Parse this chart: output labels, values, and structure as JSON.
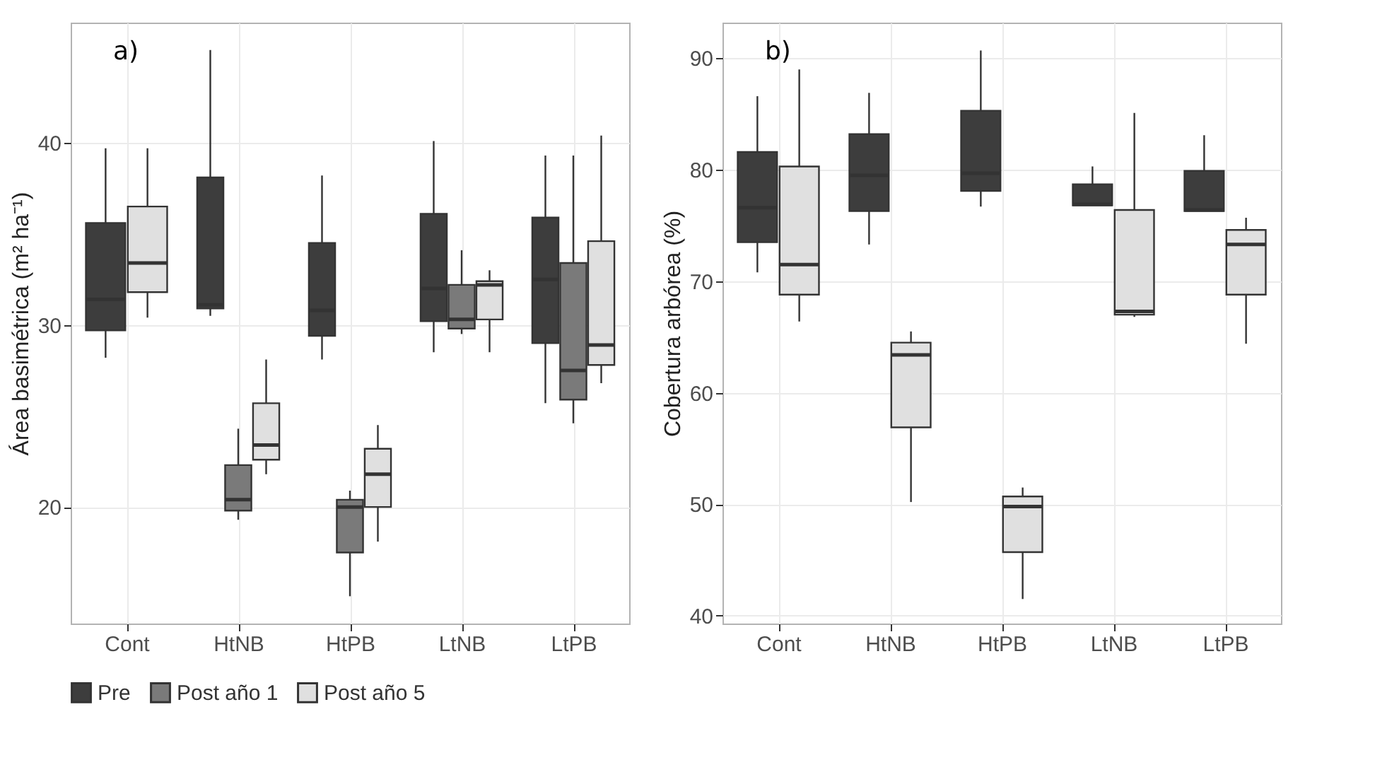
{
  "chart_data": [
    {
      "type": "box",
      "ylabel": "Área basimétrica (m² ha⁻¹)",
      "annotations": [
        "a)"
      ],
      "categories": [
        "Cont",
        "HtNB",
        "HtPB",
        "LtNB",
        "LtPB"
      ],
      "ylim": [
        13.6,
        46.6
      ],
      "yticks": [
        20,
        30,
        40
      ],
      "grid": true,
      "legend": "bottom",
      "series": [
        {
          "name": "Pre",
          "color": "#3d3d3d",
          "boxes": [
            {
              "low": 28.2,
              "q1": 29.7,
              "median": 31.4,
              "q3": 35.6,
              "high": 39.7
            },
            {
              "low": 30.5,
              "q1": 30.9,
              "median": 31.1,
              "q3": 38.1,
              "high": 45.1
            },
            {
              "low": 28.1,
              "q1": 29.4,
              "median": 30.8,
              "q3": 34.5,
              "high": 38.2
            },
            {
              "low": 28.5,
              "q1": 30.2,
              "median": 32.0,
              "q3": 36.1,
              "high": 40.1
            },
            {
              "low": 25.7,
              "q1": 29.0,
              "median": 32.5,
              "q3": 35.9,
              "high": 39.3
            }
          ]
        },
        {
          "name": "Post año 1",
          "color": "#7a7a7a",
          "boxes": [
            null,
            {
              "low": 19.3,
              "q1": 19.8,
              "median": 20.4,
              "q3": 22.3,
              "high": 24.3
            },
            {
              "low": 15.1,
              "q1": 17.5,
              "median": 20.0,
              "q3": 20.4,
              "high": 20.9
            },
            {
              "low": 29.5,
              "q1": 29.8,
              "median": 30.3,
              "q3": 32.2,
              "high": 34.1
            },
            {
              "low": 24.6,
              "q1": 25.9,
              "median": 27.5,
              "q3": 33.4,
              "high": 39.3
            }
          ]
        },
        {
          "name": "Post año 5",
          "color": "#e0e0e0",
          "boxes": [
            {
              "low": 30.4,
              "q1": 31.8,
              "median": 33.4,
              "q3": 36.5,
              "high": 39.7
            },
            {
              "low": 21.8,
              "q1": 22.6,
              "median": 23.4,
              "q3": 25.7,
              "high": 28.1
            },
            {
              "low": 18.1,
              "q1": 20.0,
              "median": 21.8,
              "q3": 23.2,
              "high": 24.5
            },
            {
              "low": 28.5,
              "q1": 30.3,
              "median": 32.2,
              "q3": 32.4,
              "high": 33.0
            },
            {
              "low": 26.8,
              "q1": 27.8,
              "median": 28.9,
              "q3": 34.6,
              "high": 40.4
            }
          ]
        }
      ]
    },
    {
      "type": "box",
      "ylabel": "Cobertura arbórea (%)",
      "annotations": [
        "b)"
      ],
      "categories": [
        "Cont",
        "HtNB",
        "HtPB",
        "LtNB",
        "LtPB"
      ],
      "ylim": [
        39.3,
        93.2
      ],
      "yticks": [
        40,
        50,
        60,
        70,
        80,
        90
      ],
      "grid": true,
      "legend": "bottom",
      "series": [
        {
          "name": "Pre",
          "color": "#3d3d3d",
          "boxes": [
            {
              "low": 70.8,
              "q1": 73.5,
              "median": 76.6,
              "q3": 81.6,
              "high": 86.6
            },
            {
              "low": 73.3,
              "q1": 76.3,
              "median": 79.5,
              "q3": 83.2,
              "high": 86.9
            },
            {
              "low": 76.7,
              "q1": 78.1,
              "median": 79.7,
              "q3": 85.3,
              "high": 90.7
            },
            {
              "low": 76.8,
              "q1": 76.8,
              "median": 76.9,
              "q3": 78.7,
              "high": 80.3
            },
            {
              "low": 76.3,
              "q1": 76.3,
              "median": 76.4,
              "q3": 79.9,
              "high": 83.1
            }
          ]
        },
        {
          "name": "Post año 5",
          "color": "#e0e0e0",
          "boxes": [
            {
              "low": 66.4,
              "q1": 68.8,
              "median": 71.5,
              "q3": 80.3,
              "high": 89.0
            },
            {
              "low": 50.2,
              "q1": 56.9,
              "median": 63.4,
              "q3": 64.5,
              "high": 65.5
            },
            {
              "low": 41.5,
              "q1": 45.7,
              "median": 49.8,
              "q3": 50.7,
              "high": 51.5
            },
            {
              "low": 66.8,
              "q1": 67.0,
              "median": 67.3,
              "q3": 76.4,
              "high": 85.1
            },
            {
              "low": 64.4,
              "q1": 68.8,
              "median": 73.3,
              "q3": 74.6,
              "high": 75.7
            }
          ]
        }
      ]
    }
  ]
}
